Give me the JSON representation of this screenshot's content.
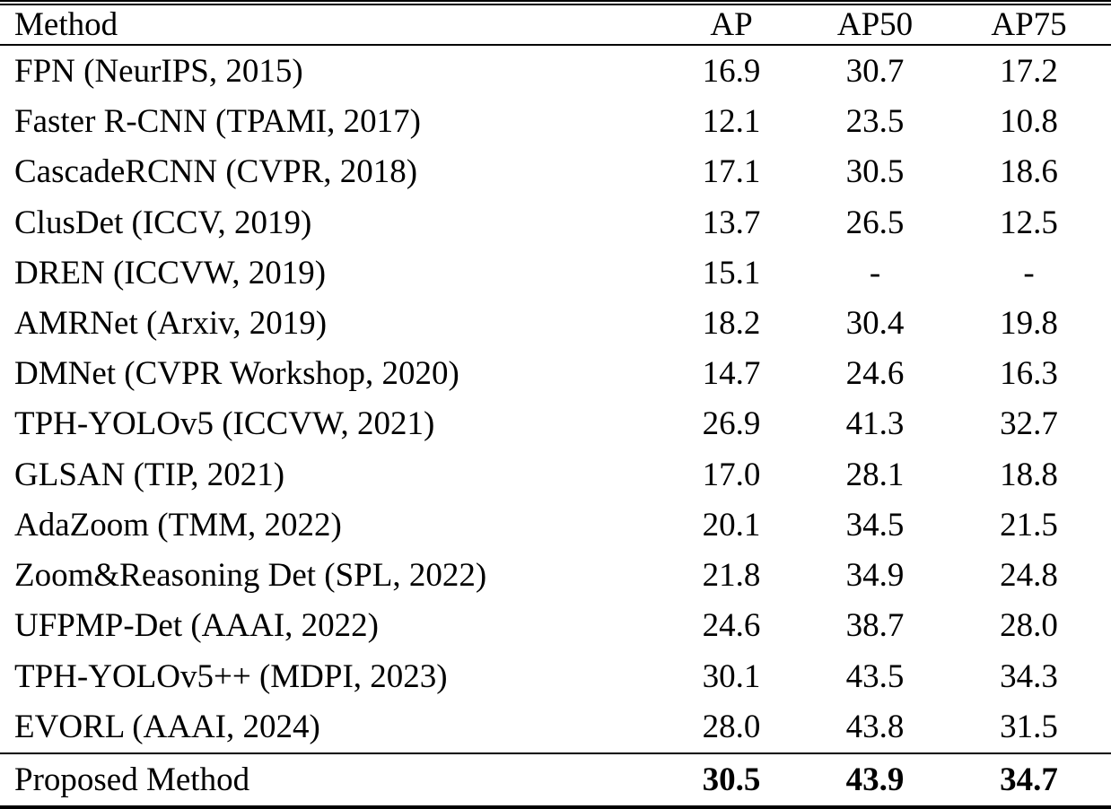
{
  "table": {
    "header": {
      "method": "Method",
      "ap": "AP",
      "ap50": "AP50",
      "ap75": "AP75"
    },
    "rows": [
      {
        "method": "FPN (NeurIPS, 2015)",
        "ap": "16.9",
        "ap50": "30.7",
        "ap75": "17.2"
      },
      {
        "method": "Faster R-CNN (TPAMI, 2017)",
        "ap": "12.1",
        "ap50": "23.5",
        "ap75": "10.8"
      },
      {
        "method": "CascadeRCNN (CVPR, 2018)",
        "ap": "17.1",
        "ap50": "30.5",
        "ap75": "18.6"
      },
      {
        "method": "ClusDet (ICCV, 2019)",
        "ap": "13.7",
        "ap50": "26.5",
        "ap75": "12.5"
      },
      {
        "method": "DREN (ICCVW, 2019)",
        "ap": "15.1",
        "ap50": "-",
        "ap75": "-"
      },
      {
        "method": "AMRNet (Arxiv, 2019)",
        "ap": "18.2",
        "ap50": "30.4",
        "ap75": "19.8"
      },
      {
        "method": "DMNet (CVPR Workshop, 2020)",
        "ap": "14.7",
        "ap50": "24.6",
        "ap75": "16.3"
      },
      {
        "method": "TPH-YOLOv5 (ICCVW, 2021)",
        "ap": "26.9",
        "ap50": "41.3",
        "ap75": "32.7"
      },
      {
        "method": "GLSAN (TIP, 2021)",
        "ap": "17.0",
        "ap50": "28.1",
        "ap75": "18.8"
      },
      {
        "method": "AdaZoom (TMM, 2022)",
        "ap": "20.1",
        "ap50": "34.5",
        "ap75": "21.5"
      },
      {
        "method": "Zoom&Reasoning Det (SPL, 2022)",
        "ap": "21.8",
        "ap50": "34.9",
        "ap75": "24.8"
      },
      {
        "method": "UFPMP-Det (AAAI, 2022)",
        "ap": "24.6",
        "ap50": "38.7",
        "ap75": "28.0"
      },
      {
        "method": "TPH-YOLOv5++ (MDPI, 2023)",
        "ap": "30.1",
        "ap50": "43.5",
        "ap75": "34.3"
      },
      {
        "method": "EVORL (AAAI, 2024)",
        "ap": "28.0",
        "ap50": "43.8",
        "ap75": "31.5"
      }
    ],
    "proposed": {
      "method": "Proposed Method",
      "ap": "30.5",
      "ap50": "43.9",
      "ap75": "34.7"
    }
  },
  "colors": {
    "text": "#000000",
    "background": "#ffffff",
    "rule": "#000000"
  }
}
